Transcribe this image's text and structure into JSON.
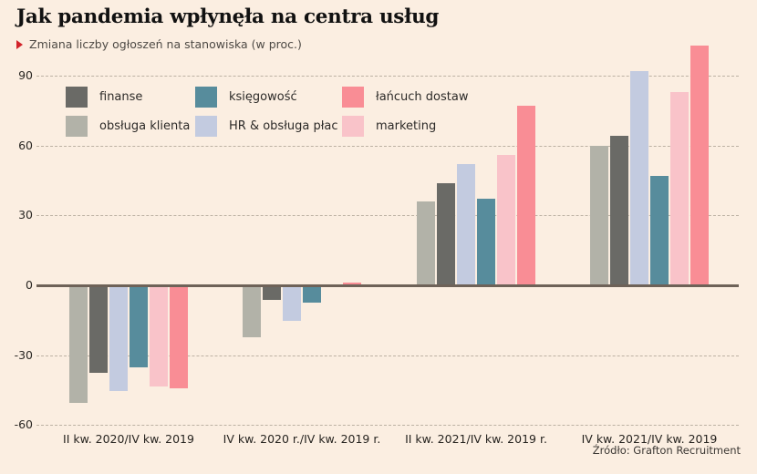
{
  "header": {
    "title": "Jak pandemia wpłynęła na centra usług",
    "subtitle": "Zmiana liczby ogłoszeń na stanowiska (w proc.)"
  },
  "legend": {
    "items": [
      {
        "label": "finanse",
        "color": "#6A6A66"
      },
      {
        "label": "obsługa klienta",
        "color": "#B2B2A8"
      },
      {
        "label": "księgowość",
        "color": "#578C9C"
      },
      {
        "label": "HR & obsługa płac",
        "color": "#C3CBE0"
      },
      {
        "label": "łańcuch dostaw",
        "color": "#F98D95"
      },
      {
        "label": "marketing",
        "color": "#F9C3C9"
      }
    ]
  },
  "chart_data": {
    "type": "bar",
    "title": "Jak pandemia wpłynęła na centra usług",
    "subtitle": "Zmiana liczby ogłoszeń na stanowiska (w proc.)",
    "categories": [
      "II kw. 2020/IV kw. 2019",
      "IV kw. 2020 r./IV kw. 2019 r.",
      "II kw. 2021/IV kw. 2019 r.",
      "IV kw. 2021/IV kw. 2019"
    ],
    "series": [
      {
        "name": "obsługa klienta",
        "color": "#B2B2A8",
        "values": [
          -50,
          -22,
          36,
          60
        ]
      },
      {
        "name": "finanse",
        "color": "#6A6A66",
        "values": [
          -37,
          -6,
          44,
          64
        ]
      },
      {
        "name": "HR & obsługa płac",
        "color": "#C3CBE0",
        "values": [
          -45,
          -15,
          52,
          92
        ]
      },
      {
        "name": "księgowość",
        "color": "#578C9C",
        "values": [
          -35,
          -7,
          37,
          47
        ]
      },
      {
        "name": "marketing",
        "color": "#F9C3C9",
        "values": [
          -43,
          0,
          56,
          83
        ]
      },
      {
        "name": "łańcuch dostaw",
        "color": "#F98D95",
        "values": [
          -44,
          1,
          77,
          103
        ]
      }
    ],
    "yticks": [
      90,
      60,
      30,
      0,
      -30,
      -60
    ],
    "ylim": [
      -60,
      105
    ],
    "grid": "dashed horizontal, solid dark zero line",
    "legend_position": "top-left inside plot, 3 columns x 2 rows"
  },
  "colors": {
    "background": "#FBEEE1",
    "accent_marker": "#D2232A",
    "zero_line": "#6E6258",
    "gridline": "#BCB1A3"
  },
  "source": "Źródło: Grafton Recruitment"
}
